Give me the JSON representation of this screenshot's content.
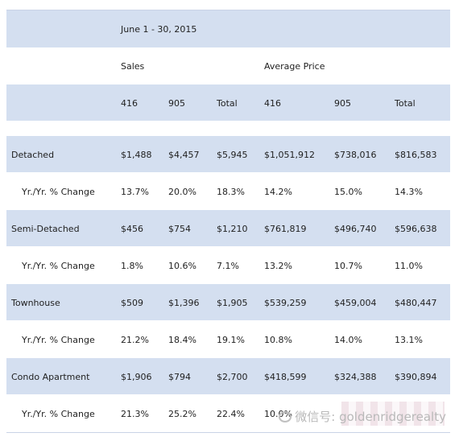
{
  "header": {
    "period": "June 1 - 30, 2015",
    "sales_label": "Sales",
    "avg_price_label": "Average Price",
    "columns": [
      "416",
      "905",
      "Total",
      "416",
      "905",
      "Total"
    ]
  },
  "rows": [
    {
      "label": "Detached",
      "values": [
        "$1,488",
        "$4,457",
        "$5,945",
        "$1,051,912",
        "$738,016",
        "$816,583"
      ]
    },
    {
      "label": "Yr./Yr. % Change",
      "values": [
        "13.7%",
        "20.0%",
        "18.3%",
        "14.2%",
        "15.0%",
        "14.3%"
      ]
    },
    {
      "label": "Semi-Detached",
      "values": [
        "$456",
        "$754",
        "$1,210",
        "$761,819",
        "$496,740",
        "$596,638"
      ]
    },
    {
      "label": "Yr./Yr. % Change",
      "values": [
        "1.8%",
        "10.6%",
        "7.1%",
        "13.2%",
        "10.7%",
        "11.0%"
      ]
    },
    {
      "label": "Townhouse",
      "values": [
        "$509",
        "$1,396",
        "$1,905",
        "$539,259",
        "$459,004",
        "$480,447"
      ]
    },
    {
      "label": "Yr./Yr. % Change",
      "values": [
        "21.2%",
        "18.4%",
        "19.1%",
        "10.8%",
        "14.0%",
        "13.1%"
      ]
    },
    {
      "label": "Condo Apartment",
      "values": [
        "$1,906",
        "$794",
        "$2,700",
        "$418,599",
        "$324,388",
        "$390,894"
      ]
    },
    {
      "label": "Yr./Yr. % Change",
      "values": [
        "21.3%",
        "25.2%",
        "22.4%",
        "10.0%",
        "",
        ""
      ]
    }
  ],
  "watermark": {
    "text": "微信号: goldenridgerealty",
    "icon": "wechat-icon"
  }
}
